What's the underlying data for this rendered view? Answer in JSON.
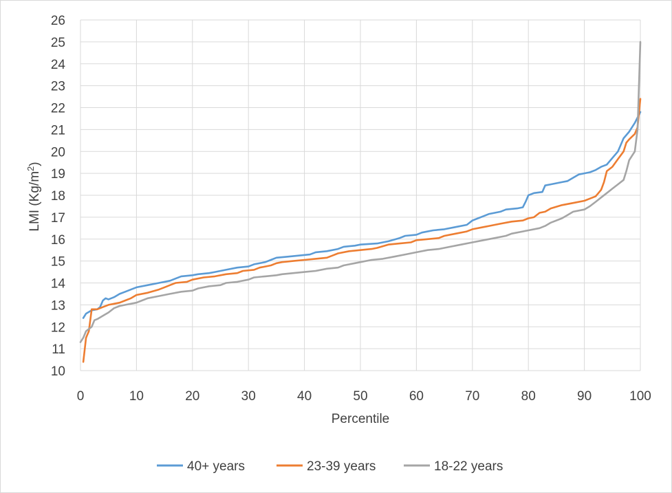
{
  "chart_data": {
    "type": "line",
    "title": "",
    "xlabel": "Percentile",
    "ylabel": "LMI (Kg/m²)",
    "ylabel_base": "LMI (Kg/m",
    "ylabel_sup": "2",
    "ylabel_end": ")",
    "xlim": [
      0,
      100
    ],
    "ylim": [
      10,
      26
    ],
    "xticks": [
      0,
      10,
      20,
      30,
      40,
      50,
      60,
      70,
      80,
      90,
      100
    ],
    "yticks": [
      10,
      11,
      12,
      13,
      14,
      15,
      16,
      17,
      18,
      19,
      20,
      21,
      22,
      23,
      24,
      25,
      26
    ],
    "grid": true,
    "legend_position": "bottom",
    "series": [
      {
        "name": "40+ years",
        "color": "#5b9bd5",
        "points": [
          [
            0.5,
            12.4
          ],
          [
            1,
            12.6
          ],
          [
            2,
            12.75
          ],
          [
            3,
            12.8
          ],
          [
            3.5,
            12.9
          ],
          [
            4,
            13.2
          ],
          [
            4.5,
            13.3
          ],
          [
            5,
            13.25
          ],
          [
            6,
            13.35
          ],
          [
            7,
            13.5
          ],
          [
            8,
            13.6
          ],
          [
            9,
            13.7
          ],
          [
            10,
            13.8
          ],
          [
            12,
            13.9
          ],
          [
            14,
            14.0
          ],
          [
            16,
            14.1
          ],
          [
            17,
            14.2
          ],
          [
            18,
            14.3
          ],
          [
            20,
            14.35
          ],
          [
            21,
            14.4
          ],
          [
            23,
            14.45
          ],
          [
            24,
            14.5
          ],
          [
            26,
            14.6
          ],
          [
            28,
            14.7
          ],
          [
            30,
            14.75
          ],
          [
            31,
            14.85
          ],
          [
            33,
            14.95
          ],
          [
            34,
            15.05
          ],
          [
            35,
            15.15
          ],
          [
            37,
            15.2
          ],
          [
            39,
            15.25
          ],
          [
            41,
            15.3
          ],
          [
            42,
            15.4
          ],
          [
            44,
            15.45
          ],
          [
            46,
            15.55
          ],
          [
            47,
            15.65
          ],
          [
            49,
            15.7
          ],
          [
            50,
            15.75
          ],
          [
            53,
            15.8
          ],
          [
            55,
            15.9
          ],
          [
            57,
            16.05
          ],
          [
            58,
            16.15
          ],
          [
            60,
            16.2
          ],
          [
            61,
            16.3
          ],
          [
            63,
            16.4
          ],
          [
            65,
            16.45
          ],
          [
            67,
            16.55
          ],
          [
            69,
            16.65
          ],
          [
            70,
            16.85
          ],
          [
            71,
            16.95
          ],
          [
            72,
            17.05
          ],
          [
            73,
            17.15
          ],
          [
            74,
            17.2
          ],
          [
            75,
            17.25
          ],
          [
            76,
            17.35
          ],
          [
            78,
            17.4
          ],
          [
            79,
            17.45
          ],
          [
            79.5,
            17.7
          ],
          [
            80,
            18.0
          ],
          [
            81,
            18.1
          ],
          [
            82.5,
            18.15
          ],
          [
            83,
            18.45
          ],
          [
            84,
            18.5
          ],
          [
            86,
            18.6
          ],
          [
            87,
            18.65
          ],
          [
            88,
            18.8
          ],
          [
            89,
            18.95
          ],
          [
            90,
            19.0
          ],
          [
            91,
            19.05
          ],
          [
            92,
            19.15
          ],
          [
            93,
            19.3
          ],
          [
            94,
            19.4
          ],
          [
            95,
            19.7
          ],
          [
            96,
            20.0
          ],
          [
            96.5,
            20.3
          ],
          [
            97,
            20.6
          ],
          [
            98,
            20.9
          ],
          [
            99,
            21.3
          ],
          [
            100,
            21.8
          ]
        ]
      },
      {
        "name": "23-39 years",
        "color": "#ed7d31",
        "points": [
          [
            0.5,
            10.4
          ],
          [
            1,
            11.5
          ],
          [
            1.5,
            11.8
          ],
          [
            2,
            12.8
          ],
          [
            3,
            12.8
          ],
          [
            4,
            12.9
          ],
          [
            5,
            13.0
          ],
          [
            6,
            13.05
          ],
          [
            7,
            13.1
          ],
          [
            8,
            13.2
          ],
          [
            9,
            13.3
          ],
          [
            10,
            13.45
          ],
          [
            12,
            13.55
          ],
          [
            14,
            13.7
          ],
          [
            15,
            13.8
          ],
          [
            16,
            13.9
          ],
          [
            17,
            14.0
          ],
          [
            19,
            14.05
          ],
          [
            20,
            14.15
          ],
          [
            22,
            14.25
          ],
          [
            24,
            14.3
          ],
          [
            26,
            14.4
          ],
          [
            28,
            14.45
          ],
          [
            29,
            14.55
          ],
          [
            31,
            14.6
          ],
          [
            32,
            14.7
          ],
          [
            34,
            14.8
          ],
          [
            35,
            14.9
          ],
          [
            36,
            14.95
          ],
          [
            38,
            15.0
          ],
          [
            40,
            15.05
          ],
          [
            42,
            15.1
          ],
          [
            44,
            15.15
          ],
          [
            45,
            15.25
          ],
          [
            46,
            15.35
          ],
          [
            48,
            15.45
          ],
          [
            50,
            15.5
          ],
          [
            52,
            15.55
          ],
          [
            53,
            15.6
          ],
          [
            55,
            15.75
          ],
          [
            57,
            15.8
          ],
          [
            59,
            15.85
          ],
          [
            60,
            15.95
          ],
          [
            62,
            16.0
          ],
          [
            64,
            16.05
          ],
          [
            65,
            16.15
          ],
          [
            67,
            16.25
          ],
          [
            69,
            16.35
          ],
          [
            70,
            16.45
          ],
          [
            72,
            16.55
          ],
          [
            73,
            16.6
          ],
          [
            75,
            16.7
          ],
          [
            77,
            16.8
          ],
          [
            79,
            16.85
          ],
          [
            80,
            16.95
          ],
          [
            81,
            17.0
          ],
          [
            82,
            17.2
          ],
          [
            83,
            17.25
          ],
          [
            84,
            17.4
          ],
          [
            86,
            17.55
          ],
          [
            88,
            17.65
          ],
          [
            90,
            17.75
          ],
          [
            91,
            17.85
          ],
          [
            92,
            17.95
          ],
          [
            92.5,
            18.1
          ],
          [
            93,
            18.25
          ],
          [
            93.5,
            18.6
          ],
          [
            94,
            19.1
          ],
          [
            95,
            19.3
          ],
          [
            96,
            19.65
          ],
          [
            97,
            20.0
          ],
          [
            97.5,
            20.4
          ],
          [
            98,
            20.55
          ],
          [
            99,
            20.8
          ],
          [
            99.5,
            21.1
          ],
          [
            100,
            22.4
          ]
        ]
      },
      {
        "name": "18-22 years",
        "color": "#a5a5a5",
        "points": [
          [
            0,
            11.3
          ],
          [
            0.5,
            11.5
          ],
          [
            1,
            11.8
          ],
          [
            2,
            12.0
          ],
          [
            2.5,
            12.3
          ],
          [
            3,
            12.35
          ],
          [
            4,
            12.5
          ],
          [
            5,
            12.65
          ],
          [
            6,
            12.85
          ],
          [
            7,
            12.95
          ],
          [
            8,
            13.0
          ],
          [
            10,
            13.1
          ],
          [
            11,
            13.2
          ],
          [
            12,
            13.3
          ],
          [
            14,
            13.4
          ],
          [
            15,
            13.45
          ],
          [
            16,
            13.5
          ],
          [
            18,
            13.6
          ],
          [
            20,
            13.65
          ],
          [
            21,
            13.75
          ],
          [
            23,
            13.85
          ],
          [
            25,
            13.9
          ],
          [
            26,
            14.0
          ],
          [
            28,
            14.05
          ],
          [
            30,
            14.15
          ],
          [
            31,
            14.25
          ],
          [
            33,
            14.3
          ],
          [
            35,
            14.35
          ],
          [
            36,
            14.4
          ],
          [
            38,
            14.45
          ],
          [
            40,
            14.5
          ],
          [
            42,
            14.55
          ],
          [
            44,
            14.65
          ],
          [
            46,
            14.7
          ],
          [
            47,
            14.8
          ],
          [
            49,
            14.9
          ],
          [
            50,
            14.95
          ],
          [
            52,
            15.05
          ],
          [
            54,
            15.1
          ],
          [
            56,
            15.2
          ],
          [
            58,
            15.3
          ],
          [
            60,
            15.4
          ],
          [
            62,
            15.5
          ],
          [
            64,
            15.55
          ],
          [
            66,
            15.65
          ],
          [
            68,
            15.75
          ],
          [
            70,
            15.85
          ],
          [
            72,
            15.95
          ],
          [
            74,
            16.05
          ],
          [
            76,
            16.15
          ],
          [
            77,
            16.25
          ],
          [
            79,
            16.35
          ],
          [
            80,
            16.4
          ],
          [
            82,
            16.5
          ],
          [
            83,
            16.6
          ],
          [
            84,
            16.75
          ],
          [
            86,
            16.95
          ],
          [
            87,
            17.1
          ],
          [
            88,
            17.25
          ],
          [
            90,
            17.35
          ],
          [
            91,
            17.5
          ],
          [
            92,
            17.7
          ],
          [
            93,
            17.9
          ],
          [
            94,
            18.1
          ],
          [
            95,
            18.3
          ],
          [
            96,
            18.5
          ],
          [
            97,
            18.7
          ],
          [
            97.5,
            19.1
          ],
          [
            98,
            19.6
          ],
          [
            99,
            20.0
          ],
          [
            99.5,
            21.0
          ],
          [
            100,
            25.0
          ]
        ]
      }
    ]
  }
}
